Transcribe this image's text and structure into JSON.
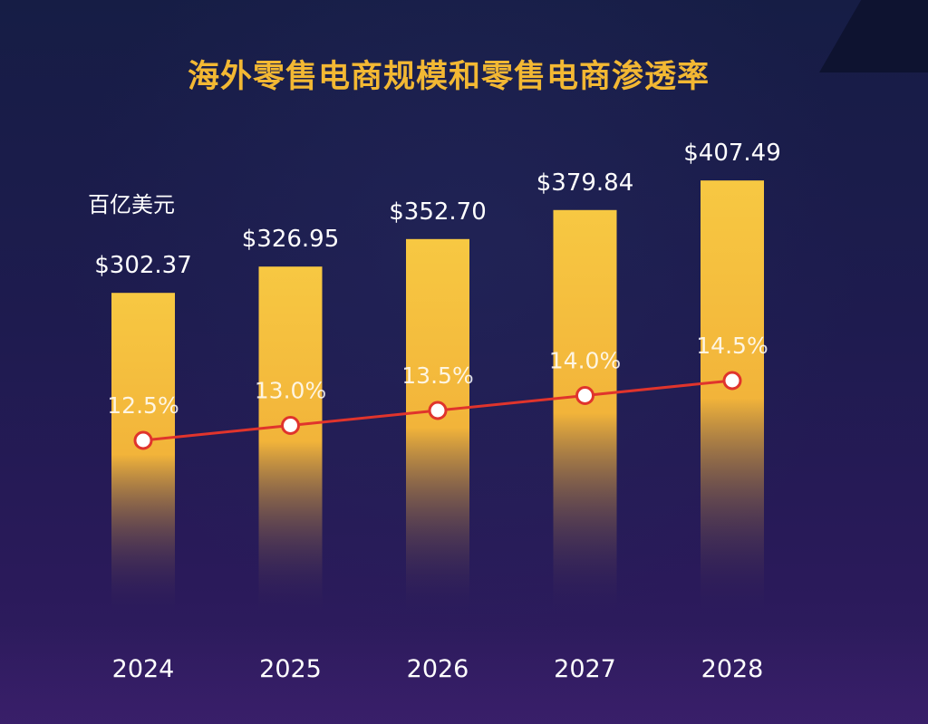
{
  "chart_data": {
    "type": "bar",
    "title": "海外零售电商规模和零售电商渗透率",
    "unit_label": "百亿美元",
    "categories": [
      "2024",
      "2025",
      "2026",
      "2027",
      "2028"
    ],
    "series": [
      {
        "kind": "bar",
        "values": [
          302.37,
          326.95,
          352.7,
          379.84,
          407.49
        ],
        "labels": [
          "$302.37",
          "$326.95",
          "$352.70",
          "$379.84",
          "$407.49"
        ]
      },
      {
        "kind": "line",
        "values": [
          12.5,
          13.0,
          13.5,
          14.0,
          14.5
        ],
        "labels": [
          "12.5%",
          "13.0%",
          "13.5%",
          "14.0%",
          "14.5%"
        ]
      }
    ],
    "grid": false,
    "legend": "none"
  },
  "colors": {
    "title": "#f3b833",
    "bar_top": "#f7c842",
    "bar_bottom": "#2a1a5a",
    "line": "#e0342c",
    "text": "#ffffff"
  }
}
